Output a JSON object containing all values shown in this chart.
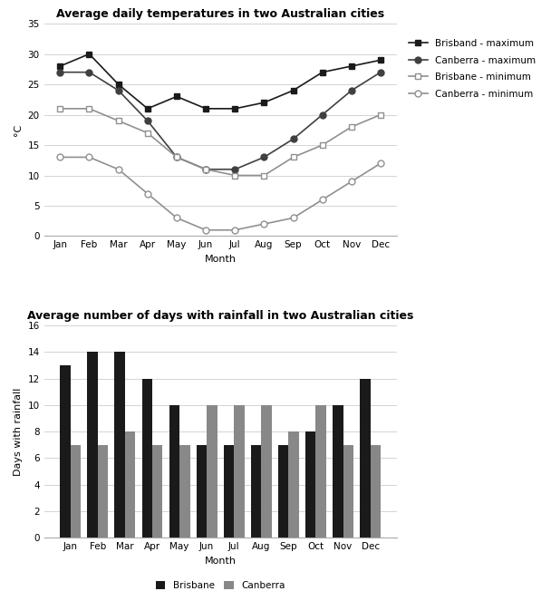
{
  "months": [
    "Jan",
    "Feb",
    "Mar",
    "Apr",
    "May",
    "Jun",
    "Jul",
    "Aug",
    "Sep",
    "Oct",
    "Nov",
    "Dec"
  ],
  "brisbane_max": [
    28,
    30,
    25,
    21,
    23,
    21,
    21,
    22,
    24,
    27,
    28,
    29
  ],
  "canberra_max": [
    27,
    27,
    24,
    19,
    13,
    11,
    11,
    13,
    16,
    20,
    24,
    27
  ],
  "brisbane_min": [
    21,
    21,
    19,
    17,
    13,
    11,
    10,
    10,
    13,
    15,
    18,
    20
  ],
  "canberra_min": [
    13,
    13,
    11,
    7,
    3,
    1,
    1,
    2,
    3,
    6,
    9,
    12
  ],
  "brisbane_rain": [
    13,
    14,
    14,
    12,
    10,
    7,
    7,
    7,
    7,
    8,
    10,
    12
  ],
  "canberra_rain": [
    7,
    7,
    8,
    7,
    7,
    10,
    10,
    10,
    8,
    10,
    7,
    7
  ],
  "line_title": "Average daily temperatures in two Australian cities",
  "bar_title": "Average number of days with rainfall in two Australian cities",
  "line_ylabel": "°C",
  "bar_ylabel": "Days with rainfall",
  "xlabel": "Month",
  "line_ylim": [
    0,
    35
  ],
  "line_yticks": [
    0,
    5,
    10,
    15,
    20,
    25,
    30,
    35
  ],
  "bar_ylim": [
    0,
    16
  ],
  "bar_yticks": [
    0,
    2,
    4,
    6,
    8,
    10,
    12,
    14,
    16
  ],
  "color_brisbane_max": "#1a1a1a",
  "color_canberra_max": "#404040",
  "color_brisbane_min": "#909090",
  "color_canberra_min": "#909090",
  "color_brisbane_bar": "#1a1a1a",
  "color_canberra_bar": "#888888",
  "legend_labels_line": [
    "Brisband - maximum",
    "Canberra - maximum",
    "Brisbane - minimum",
    "Canberra - minimum"
  ],
  "legend_labels_bar": [
    "Brisbane",
    "Canberra"
  ],
  "title_fontsize": 9,
  "axis_fontsize": 8,
  "tick_fontsize": 7.5,
  "legend_fontsize": 7.5
}
